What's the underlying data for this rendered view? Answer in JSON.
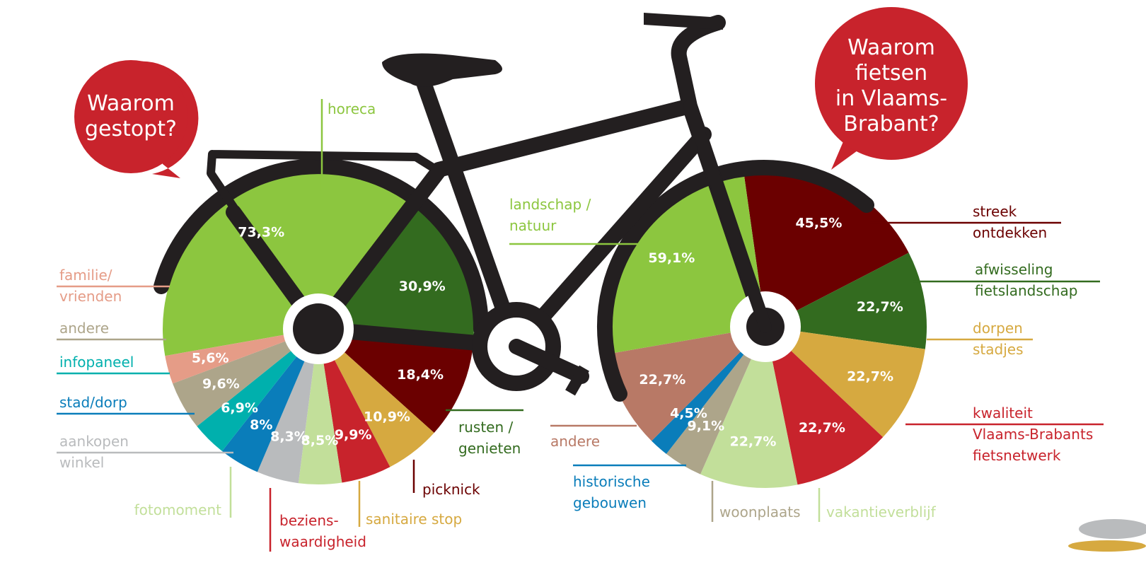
{
  "chart_data": [
    {
      "type": "pie",
      "title": "Waarom\ngestopt?",
      "categories": [
        "horeca",
        "rusten /\ngenieten",
        "picknick",
        "sanitaire stop",
        "beziens-\nwaardigheid",
        "fotomoment",
        "aankopen\nwinkel",
        "stad/dorp",
        "infopaneel",
        "andere",
        "familie/\nvrienden"
      ],
      "values": [
        73.3,
        30.9,
        18.4,
        10.9,
        9.9,
        8.5,
        8.3,
        8,
        6.9,
        9.6,
        5.6
      ],
      "value_labels": [
        "73,3%",
        "30,9%",
        "18,4%",
        "10,9%",
        "9,9%",
        "8,5%",
        "8,3%",
        "8%",
        "6,9%",
        "9,6%",
        "5,6%"
      ],
      "colors": [
        "#8cc63f",
        "#336b1f",
        "#6b0000",
        "#d6a940",
        "#c8232c",
        "#c2df9a",
        "#b9bbbd",
        "#0a7dba",
        "#00b0ad",
        "#ada58a",
        "#e59c87"
      ]
    },
    {
      "type": "pie",
      "title": "Waarom\nfietsen\nin Vlaams-\nBrabant?",
      "categories": [
        "streek\nontdekken",
        "afwisseling\nfietslandschap",
        "dorpen\nstadjes",
        "kwaliteit\nVlaams-Brabants\nfietsnetwerk",
        "vakantieverblijf",
        "woonplaats",
        "historische\ngebouwen",
        "andere",
        "landschap /\nnatuur"
      ],
      "values": [
        45.5,
        22.7,
        22.7,
        22.7,
        22.7,
        9.1,
        4.5,
        22.7,
        59.1
      ],
      "value_labels": [
        "45,5%",
        "22,7%",
        "22,7%",
        "22,7%",
        "22,7%",
        "9,1%",
        "4,5%",
        "22,7%",
        "59,1%"
      ],
      "colors": [
        "#6b0000",
        "#336b1f",
        "#d6a940",
        "#c8232c",
        "#c2df9a",
        "#ada58a",
        "#0a7dba",
        "#b87966",
        "#8cc63f"
      ]
    }
  ]
}
